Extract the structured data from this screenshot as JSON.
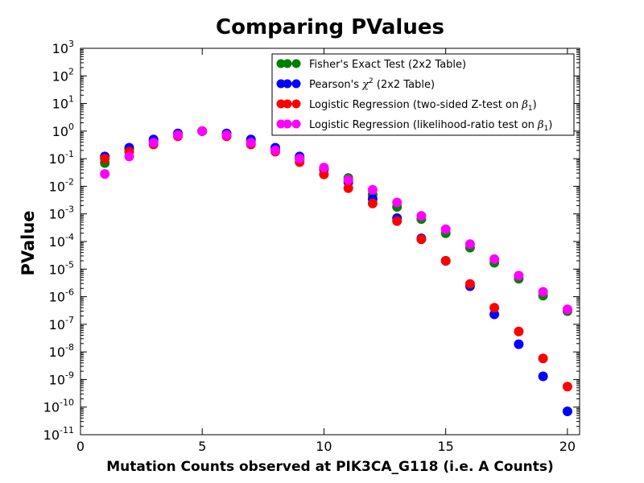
{
  "chart_data": {
    "type": "scatter",
    "title": "Comparing PValues",
    "xlabel": "Mutation Counts observed at PIK3CA_G118 (i.e. A Counts)",
    "ylabel": "PValue",
    "xlim": [
      0,
      20.5
    ],
    "ylim": [
      1e-11,
      1000
    ],
    "yscale": "log",
    "grid": false,
    "legend_position": "top-right",
    "x_ticks": [
      0,
      5,
      10,
      15,
      20
    ],
    "y_tick_exponents": [
      -11,
      -10,
      -9,
      -8,
      -7,
      -6,
      -5,
      -4,
      -3,
      -2,
      -1,
      0,
      1,
      2,
      3
    ],
    "x": [
      1,
      2,
      3,
      4,
      5,
      6,
      7,
      8,
      9,
      10,
      11,
      12,
      13,
      14,
      15,
      16,
      17,
      18,
      19,
      20
    ],
    "series": [
      {
        "name": "Fisher's Exact Test (2x2 Table)",
        "legend_label": [
          "Fisher's Exact Test (2x2 Table)"
        ],
        "color": "#008000",
        "values": [
          0.07,
          0.22,
          0.45,
          0.78,
          1.0,
          0.78,
          0.45,
          0.22,
          0.1,
          0.04,
          0.02,
          0.005,
          0.0018,
          0.00065,
          0.0002,
          6e-05,
          1.7e-05,
          4.5e-06,
          1.1e-06,
          3e-07
        ]
      },
      {
        "name": "Pearson's χ² (2x2 Table)",
        "legend_label": [
          "Pearson's ",
          "χ",
          "2",
          " (2x2 Table)"
        ],
        "color": "#0000ff",
        "values": [
          0.12,
          0.25,
          0.5,
          0.82,
          1.0,
          0.82,
          0.5,
          0.25,
          0.12,
          0.045,
          0.014,
          0.0035,
          0.0007,
          0.00013,
          2e-05,
          2.4e-06,
          2.3e-07,
          1.9e-08,
          1.3e-09,
          7e-11
        ]
      },
      {
        "name": "Logistic Regression (two-sided Z-test on β1)",
        "legend_label": [
          "Logistic Regression (two-sided Z-test on ",
          "β",
          "1",
          ")"
        ],
        "color": "#ff0000",
        "values": [
          0.1,
          0.18,
          0.33,
          0.65,
          1.0,
          0.65,
          0.33,
          0.18,
          0.075,
          0.027,
          0.0085,
          0.0024,
          0.00055,
          0.00012,
          2e-05,
          2.9e-06,
          4e-07,
          5.5e-08,
          5.8e-09,
          5.5e-10
        ]
      },
      {
        "name": "Logistic Regression (likelihood-ratio test on β1)",
        "legend_label": [
          "Logistic Regression (likelihood-ratio test on ",
          "β",
          "1",
          ")"
        ],
        "color": "#ff00ff",
        "values": [
          0.028,
          0.12,
          0.38,
          0.72,
          1.0,
          0.72,
          0.38,
          0.2,
          0.1,
          0.048,
          0.017,
          0.0075,
          0.0026,
          0.00085,
          0.00028,
          8e-05,
          2.3e-05,
          5.8e-06,
          1.5e-06,
          3.5e-07
        ]
      }
    ]
  }
}
